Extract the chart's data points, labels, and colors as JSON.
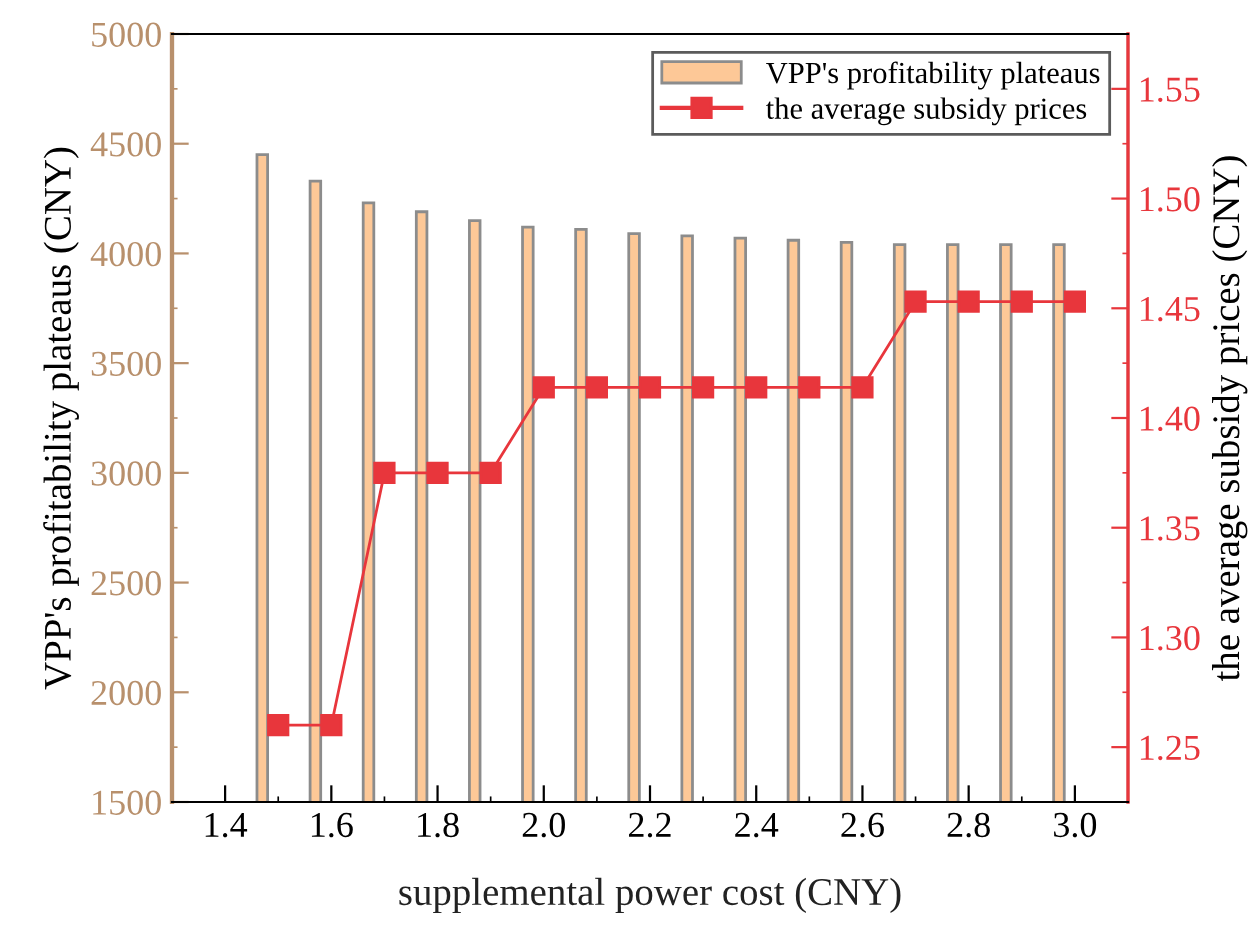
{
  "chart_data": {
    "type": "bar",
    "xlabel": "supplemental power cost (CNY)",
    "ylabel": "VPP's profitability plateaus (CNY)",
    "y2label": "the average subsidy prices (CNY)",
    "xlim": [
      1.3,
      3.1
    ],
    "xticks": [
      1.4,
      1.6,
      1.8,
      {
        "value": 2,
        "label": "2.0"
      },
      2.2,
      2.4,
      2.6,
      2.8,
      {
        "value": 3,
        "label": "3.0"
      }
    ],
    "ylim": [
      1500,
      5000
    ],
    "yticks": [
      1500,
      2000,
      2500,
      3000,
      3500,
      4000,
      4500,
      5000
    ],
    "y2lim": [
      1.225,
      1.575
    ],
    "y2ticks": [
      1.25,
      {
        "value": 1.3,
        "label": "1.30"
      },
      1.35,
      {
        "value": 1.4,
        "label": "1.40"
      },
      1.45,
      {
        "value": 1.5,
        "label": "1.50"
      },
      1.55
    ],
    "grid": false,
    "legend": "top right",
    "marker": "square",
    "series": [
      {
        "name": "VPP's profitability plateaus",
        "color": "#fdc897",
        "x": [
          1.47,
          1.57,
          1.67,
          1.77,
          1.87,
          1.97,
          2.07,
          2.17,
          2.27,
          2.37,
          2.47,
          2.57,
          2.67,
          2.77,
          2.87,
          2.97
        ],
        "values": [
          4450,
          4330,
          4230,
          4190,
          4150,
          4120,
          4110,
          4090,
          4080,
          4070,
          4060,
          4050,
          4040,
          4040,
          4040,
          4040
        ]
      },
      {
        "name": "the average subsidy prices",
        "type": "line",
        "axis": "y2",
        "color": "#e8363c",
        "x": [
          1.5,
          1.6,
          1.7,
          1.8,
          1.9,
          2.0,
          2.1,
          2.2,
          2.3,
          2.4,
          2.5,
          2.6,
          2.7,
          2.8,
          2.9,
          3.0
        ],
        "values": [
          1.26,
          1.26,
          1.375,
          1.375,
          1.375,
          1.414,
          1.414,
          1.414,
          1.414,
          1.414,
          1.414,
          1.414,
          1.453,
          1.453,
          1.453,
          1.453
        ]
      }
    ]
  }
}
